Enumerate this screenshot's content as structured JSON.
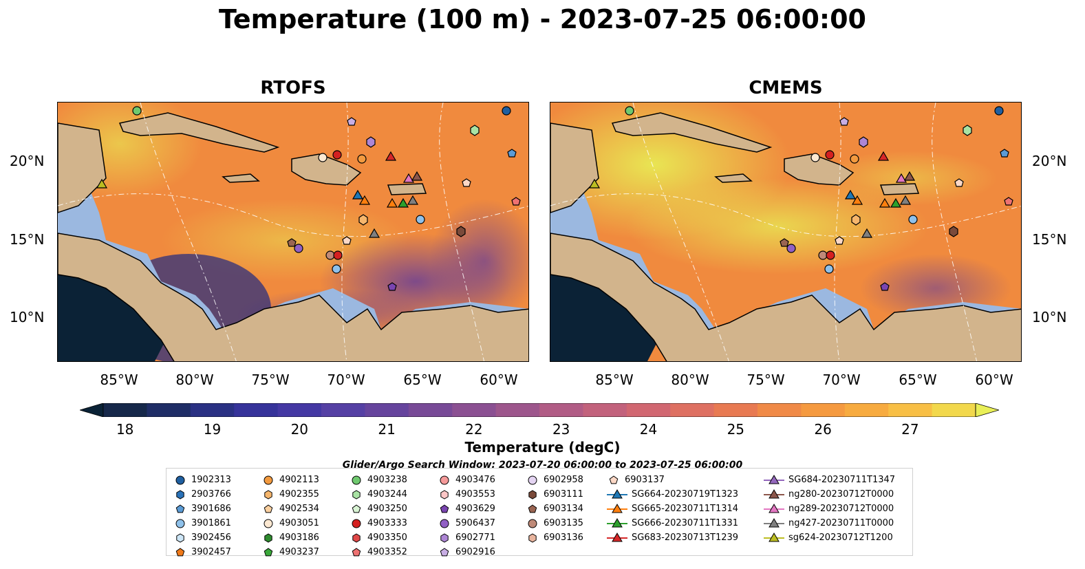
{
  "title": "Temperature (100 m) - 2023-07-25 06:00:00",
  "panels": [
    {
      "title": "RTOFS"
    },
    {
      "title": "CMEMS"
    }
  ],
  "lat_labels": [
    "20°N",
    "15°N",
    "10°N"
  ],
  "lon_labels": [
    "85°W",
    "80°W",
    "75°W",
    "70°W",
    "65°W",
    "60°W"
  ],
  "colorbar": {
    "label": "Temperature (degC)",
    "ticks": [
      "18",
      "19",
      "20",
      "21",
      "22",
      "23",
      "24",
      "25",
      "26",
      "27"
    ],
    "min": 18,
    "max": 27.5,
    "step": 0.5,
    "colors": [
      "#0a2236",
      "#16284a",
      "#1f2d66",
      "#2a3183",
      "#36339a",
      "#4438a3",
      "#5540a4",
      "#66449d",
      "#784a97",
      "#8b5092",
      "#9d568c",
      "#b15c85",
      "#c2627c",
      "#d16771",
      "#de7062",
      "#e87a52",
      "#f08a47",
      "#f59a40",
      "#f7ab40",
      "#f8bf45",
      "#f2d84c",
      "#e9ef57"
    ]
  },
  "legend": {
    "title": "Glider/Argo Search Window: 2023-07-20 06:00:00 to 2023-07-25 06:00:00",
    "columns": [
      [
        {
          "label": "1902313",
          "marker": "circle",
          "color": "#1f5fa0"
        },
        {
          "label": "2903766",
          "marker": "hexagon",
          "color": "#2a72b8"
        },
        {
          "label": "3901686",
          "marker": "pentagon",
          "color": "#5b9bd5"
        },
        {
          "label": "3901861",
          "marker": "circle",
          "color": "#8fc1ea"
        },
        {
          "label": "3902456",
          "marker": "hexagon",
          "color": "#cde6f7"
        },
        {
          "label": "3902457",
          "marker": "pentagon",
          "color": "#f07a1a"
        }
      ],
      [
        {
          "label": "4902113",
          "marker": "circle",
          "color": "#f39a3f"
        },
        {
          "label": "4902355",
          "marker": "hexagon",
          "color": "#f6b66c"
        },
        {
          "label": "4902534",
          "marker": "pentagon",
          "color": "#fad0a0"
        },
        {
          "label": "4903051",
          "marker": "circle",
          "color": "#fde9d2"
        },
        {
          "label": "4903186",
          "marker": "hexagon",
          "color": "#2e8b2e"
        },
        {
          "label": "4903237",
          "marker": "pentagon",
          "color": "#3aa83a"
        }
      ],
      [
        {
          "label": "4903238",
          "marker": "circle",
          "color": "#6fc96f"
        },
        {
          "label": "4903244",
          "marker": "hexagon",
          "color": "#a9e3a4"
        },
        {
          "label": "4903250",
          "marker": "pentagon",
          "color": "#d9f4d4"
        },
        {
          "label": "4903333",
          "marker": "circle",
          "color": "#d42020"
        },
        {
          "label": "4903350",
          "marker": "hexagon",
          "color": "#e04848"
        },
        {
          "label": "4903352",
          "marker": "pentagon",
          "color": "#ee7272"
        }
      ],
      [
        {
          "label": "4903476",
          "marker": "circle",
          "color": "#f59a9a"
        },
        {
          "label": "4903553",
          "marker": "hexagon",
          "color": "#fcc6c6"
        },
        {
          "label": "4903629",
          "marker": "pentagon",
          "color": "#7a45b0"
        },
        {
          "label": "5906437",
          "marker": "circle",
          "color": "#9160c4"
        },
        {
          "label": "6902771",
          "marker": "hexagon",
          "color": "#ad86d5"
        },
        {
          "label": "6902916",
          "marker": "pentagon",
          "color": "#c8aee4"
        }
      ],
      [
        {
          "label": "6902958",
          "marker": "circle",
          "color": "#e4d4f2"
        },
        {
          "label": "6903111",
          "marker": "hexagon",
          "color": "#7a4a3a"
        },
        {
          "label": "6903134",
          "marker": "pentagon",
          "color": "#9a6552"
        },
        {
          "label": "6903135",
          "marker": "circle",
          "color": "#bf8a78"
        },
        {
          "label": "6903136",
          "marker": "hexagon",
          "color": "#e8b49e"
        }
      ],
      [
        {
          "label": "6903137",
          "marker": "pentagon",
          "color": "#fcd8c6"
        },
        {
          "label": "SG664-20230719T1323",
          "marker": "triangle-line",
          "color": "#1f77b4"
        },
        {
          "label": "SG665-20230711T1314",
          "marker": "triangle-line",
          "color": "#ff7f0e"
        },
        {
          "label": "SG666-20230711T1331",
          "marker": "triangle-line",
          "color": "#2ca02c"
        },
        {
          "label": "SG683-20230713T1239",
          "marker": "triangle-line",
          "color": "#d62728"
        }
      ],
      [
        {
          "label": "SG684-20230711T1347",
          "marker": "triangle-line",
          "color": "#9467bd"
        },
        {
          "label": "ng280-20230712T0000",
          "marker": "triangle-line",
          "color": "#8c564b"
        },
        {
          "label": "ng289-20230712T0000",
          "marker": "triangle-line",
          "color": "#e377c2"
        },
        {
          "label": "ng427-20230711T0000",
          "marker": "triangle-line",
          "color": "#7f7f7f"
        },
        {
          "label": "sg624-20230712T1200",
          "marker": "triangle-line",
          "color": "#bcbd22"
        }
      ]
    ]
  },
  "colors": {
    "land": "#d2b48c",
    "shelf": "#9bb8e0",
    "warm": "#f08a3e",
    "hot": "#e8ef55",
    "cool": "#7a3f8f",
    "cold": "#1c2f66",
    "coldest": "#0b2236"
  },
  "icons": {
    "legend_markers": "circle / hexagon / pentagon / triangle-line"
  }
}
